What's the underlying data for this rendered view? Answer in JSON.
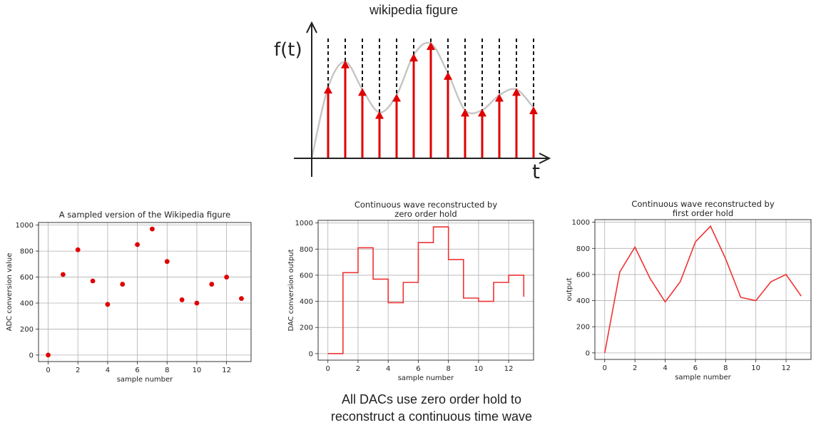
{
  "figure_title": "wikipedia figure",
  "caption": {
    "line1": "All DACs use zero order hold to",
    "line2": "reconstruct a continuous time wave"
  },
  "chart_data": [
    {
      "type": "bar",
      "id": "wikipedia-figure",
      "ylabel": "f(t)",
      "xlabel": "t",
      "grid": false,
      "sample_heights": [
        0.62,
        0.84,
        0.6,
        0.4,
        0.55,
        0.9,
        1.0,
        0.74,
        0.42,
        0.42,
        0.55,
        0.6,
        0.44
      ]
    },
    {
      "type": "scatter",
      "id": "sampled",
      "title": "A sampled version of the Wikipedia figure",
      "xlabel": "sample number",
      "ylabel": "ADC conversion value",
      "x": [
        0,
        1,
        2,
        3,
        4,
        5,
        6,
        7,
        8,
        9,
        10,
        11,
        12,
        13
      ],
      "y": [
        0,
        620,
        810,
        570,
        390,
        545,
        850,
        970,
        720,
        425,
        400,
        545,
        600,
        435
      ],
      "xlim": [
        -0.65,
        13.65
      ],
      "ylim": [
        -50,
        1020
      ],
      "xticks": [
        "0",
        "2",
        "4",
        "6",
        "8",
        "10",
        "12"
      ],
      "yticks": [
        "0",
        "200",
        "400",
        "600",
        "800",
        "1000"
      ],
      "grid": true,
      "color": "#e00000"
    },
    {
      "type": "line",
      "id": "zero-order",
      "title": [
        "Continuous wave reconstructed by",
        "zero order hold"
      ],
      "xlabel": "sample number",
      "ylabel": "DAC conversion output",
      "x": [
        0,
        1,
        2,
        3,
        4,
        5,
        6,
        7,
        8,
        9,
        10,
        11,
        12,
        13
      ],
      "y": [
        0,
        620,
        810,
        570,
        390,
        545,
        850,
        970,
        720,
        425,
        400,
        545,
        600,
        435
      ],
      "step": true,
      "xlim": [
        -0.65,
        13.65
      ],
      "ylim": [
        -50,
        1020
      ],
      "xticks": [
        "0",
        "2",
        "4",
        "6",
        "8",
        "10",
        "12"
      ],
      "yticks": [
        "0",
        "200",
        "400",
        "600",
        "800",
        "1000"
      ],
      "grid": true,
      "color": "#ee3333"
    },
    {
      "type": "line",
      "id": "first-order",
      "title": [
        "Continuous wave reconstructed by",
        "first order hold"
      ],
      "xlabel": "sample number",
      "ylabel": "output",
      "x": [
        0,
        1,
        2,
        3,
        4,
        5,
        6,
        7,
        8,
        9,
        10,
        11,
        12,
        13
      ],
      "y": [
        0,
        620,
        810,
        570,
        390,
        545,
        850,
        970,
        720,
        425,
        400,
        545,
        600,
        435
      ],
      "step": false,
      "xlim": [
        -0.65,
        13.65
      ],
      "ylim": [
        -50,
        1020
      ],
      "xticks": [
        "0",
        "2",
        "4",
        "6",
        "8",
        "10",
        "12"
      ],
      "yticks": [
        "0",
        "200",
        "400",
        "600",
        "800",
        "1000"
      ],
      "grid": true,
      "color": "#ee3333"
    }
  ]
}
